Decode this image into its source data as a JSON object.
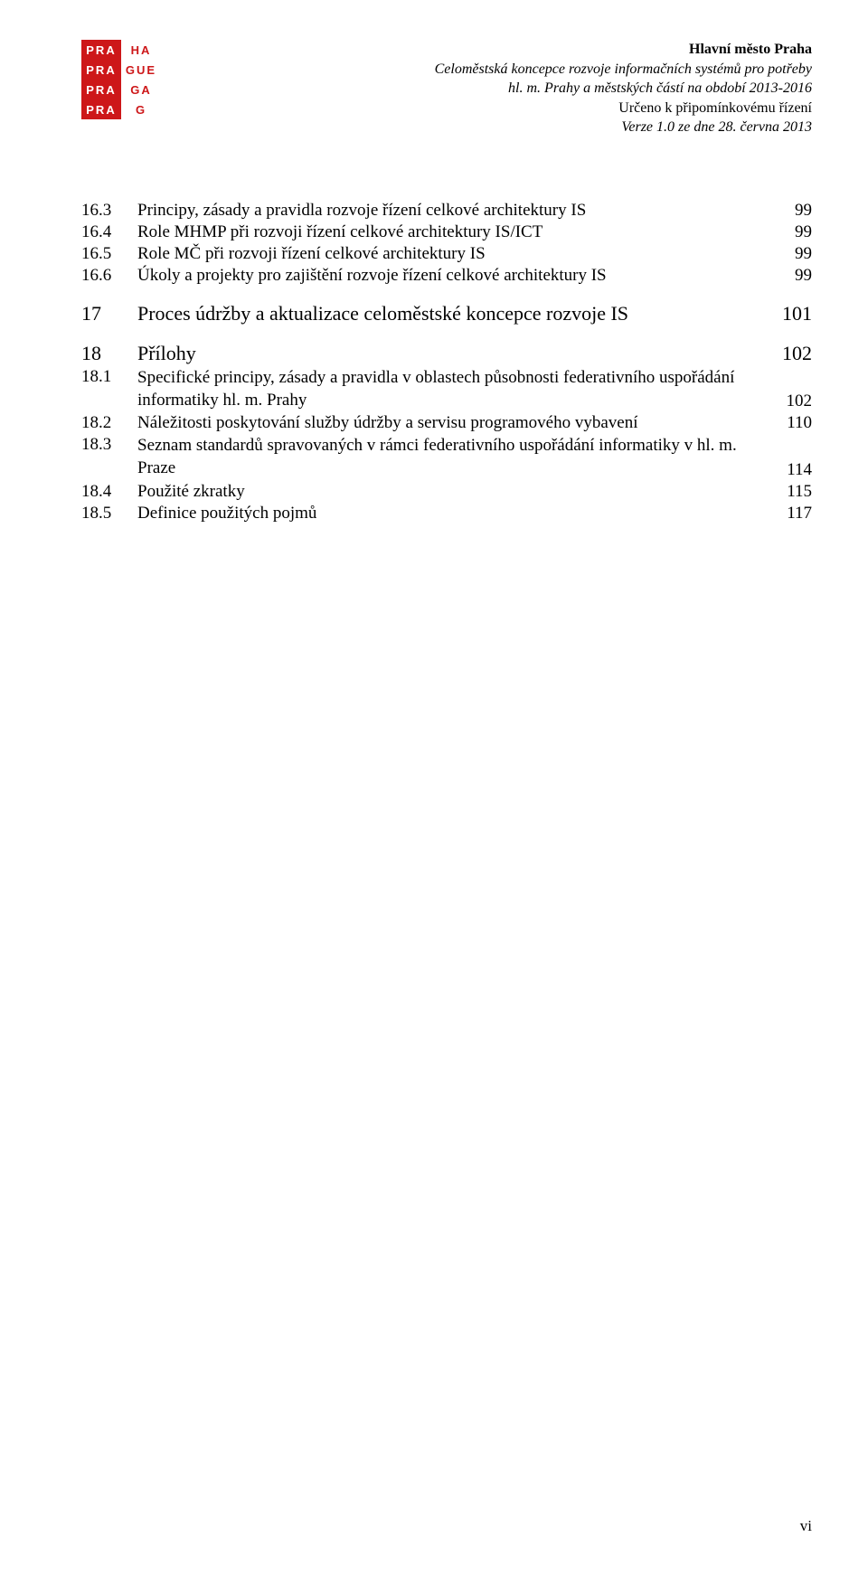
{
  "header": {
    "line1_bold": "Hlavní město Praha",
    "line2": "Celoměstská koncepce rozvoje informačních systémů pro potřeby",
    "line3": "hl. m. Prahy a městských částí na období 2013-2016",
    "line4": "Určeno k připomínkovému řízení",
    "line5": "Verze 1.0 ze dne 28. června 2013"
  },
  "logo": {
    "r1a": "PRA",
    "r1b": "HA",
    "r2a": "PRA",
    "r2b": "GUE",
    "r3a": "PRA",
    "r3b": "GA",
    "r4a": "PRA",
    "r4b": "G"
  },
  "toc": {
    "r0": {
      "num": "16.3",
      "title": "Principy, zásady a pravidla rozvoje řízení celkové architektury IS",
      "page": "99"
    },
    "r1": {
      "num": "16.4",
      "title": "Role MHMP při rozvoji řízení celkové architektury IS/ICT",
      "page": "99"
    },
    "r2": {
      "num": "16.5",
      "title": "Role MČ při rozvoji řízení celkové architektury IS",
      "page": "99"
    },
    "r3": {
      "num": "16.6",
      "title": "Úkoly a projekty pro zajištění rozvoje řízení celkové architektury IS",
      "page": "99"
    },
    "s17": {
      "num": "17",
      "title": "Proces údržby a aktualizace celoměstské koncepce rozvoje IS",
      "page": "101"
    },
    "s18": {
      "num": "18",
      "title": "Přílohy",
      "page": "102"
    },
    "r181": {
      "num": "18.1",
      "title": "Specifické principy, zásady a pravidla v oblastech působnosti federativního uspořádání informatiky hl. m. Prahy",
      "page": "102"
    },
    "r182": {
      "num": "18.2",
      "title": "Náležitosti poskytování služby údržby a servisu programového vybavení",
      "page": "110"
    },
    "r183": {
      "num": "18.3",
      "title": "Seznam standardů spravovaných v rámci federativního uspořádání informatiky v hl. m. Praze",
      "page": "114"
    },
    "r184": {
      "num": "18.4",
      "title": "Použité zkratky",
      "page": "115"
    },
    "r185": {
      "num": "18.5",
      "title": "Definice použitých pojmů",
      "page": "117"
    }
  },
  "page_number": "vi"
}
